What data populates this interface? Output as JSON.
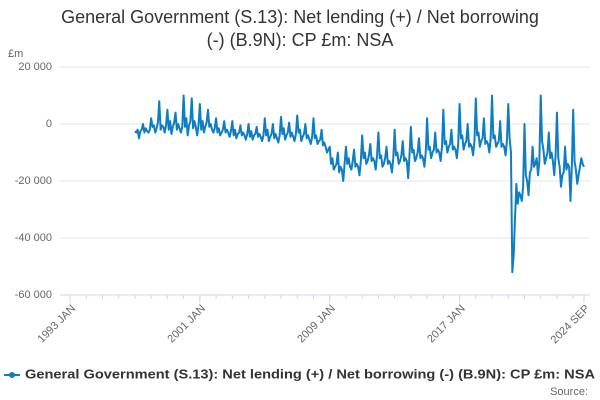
{
  "chart_data": {
    "type": "line",
    "title": "General Government (S.13): Net lending (+) / Net borrowing (-) (B.9N): CP £m: NSA",
    "y_label": "£m",
    "source": "Source:",
    "xlim": [
      "1993 JAN",
      "2024 SEP"
    ],
    "xticks": [
      "1993 JAN",
      "2001 JAN",
      "2009 JAN",
      "2017 JAN",
      "2024 SEP"
    ],
    "ylim": [
      -60000,
      20000
    ],
    "yticks": [
      {
        "value": -60000,
        "label": "-60 000"
      },
      {
        "value": -40000,
        "label": "-40 000"
      },
      {
        "value": -20000,
        "label": "-20 000"
      },
      0,
      {
        "value": 20000,
        "label": "20 000"
      }
    ],
    "grid": true,
    "x": [
      "1997 JAN",
      "1997 FEB",
      "1997 MAR",
      "1997 APR",
      "1997 MAY",
      "1997 JUN",
      "1997 JUL",
      "1997 AUG",
      "1997 SEP",
      "1997 OCT",
      "1997 NOV",
      "1997 DEC",
      "1998 JAN",
      "1998 FEB",
      "1998 MAR",
      "1998 APR",
      "1998 MAY",
      "1998 JUN",
      "1998 JUL",
      "1998 AUG",
      "1998 SEP",
      "1998 OCT",
      "1998 NOV",
      "1998 DEC",
      "1999 JAN",
      "1999 FEB",
      "1999 MAR",
      "1999 APR",
      "1999 MAY",
      "1999 JUN",
      "1999 JUL",
      "1999 AUG",
      "1999 SEP",
      "1999 OCT",
      "1999 NOV",
      "1999 DEC",
      "2000 JAN",
      "2000 FEB",
      "2000 MAR",
      "2000 APR",
      "2000 MAY",
      "2000 JUN",
      "2000 JUL",
      "2000 AUG",
      "2000 SEP",
      "2000 OCT",
      "2000 NOV",
      "2000 DEC",
      "2001 JAN",
      "2001 FEB",
      "2001 MAR",
      "2001 APR",
      "2001 MAY",
      "2001 JUN",
      "2001 JUL",
      "2001 AUG",
      "2001 SEP",
      "2001 OCT",
      "2001 NOV",
      "2001 DEC",
      "2002 JAN",
      "2002 FEB",
      "2002 MAR",
      "2002 APR",
      "2002 MAY",
      "2002 JUN",
      "2002 JUL",
      "2002 AUG",
      "2002 SEP",
      "2002 OCT",
      "2002 NOV",
      "2002 DEC",
      "2003 JAN",
      "2003 FEB",
      "2003 MAR",
      "2003 APR",
      "2003 MAY",
      "2003 JUN",
      "2003 JUL",
      "2003 AUG",
      "2003 SEP",
      "2003 OCT",
      "2003 NOV",
      "2003 DEC",
      "2004 JAN",
      "2004 FEB",
      "2004 MAR",
      "2004 APR",
      "2004 MAY",
      "2004 JUN",
      "2004 JUL",
      "2004 AUG",
      "2004 SEP",
      "2004 OCT",
      "2004 NOV",
      "2004 DEC",
      "2005 JAN",
      "2005 FEB",
      "2005 MAR",
      "2005 APR",
      "2005 MAY",
      "2005 JUN",
      "2005 JUL",
      "2005 AUG",
      "2005 SEP",
      "2005 OCT",
      "2005 NOV",
      "2005 DEC",
      "2006 JAN",
      "2006 FEB",
      "2006 MAR",
      "2006 APR",
      "2006 MAY",
      "2006 JUN",
      "2006 JUL",
      "2006 AUG",
      "2006 SEP",
      "2006 OCT",
      "2006 NOV",
      "2006 DEC",
      "2007 JAN",
      "2007 FEB",
      "2007 MAR",
      "2007 APR",
      "2007 MAY",
      "2007 JUN",
      "2007 JUL",
      "2007 AUG",
      "2007 SEP",
      "2007 OCT",
      "2007 NOV",
      "2007 DEC",
      "2008 JAN",
      "2008 FEB",
      "2008 MAR",
      "2008 APR",
      "2008 MAY",
      "2008 JUN",
      "2008 JUL",
      "2008 AUG",
      "2008 SEP",
      "2008 OCT",
      "2008 NOV",
      "2008 DEC",
      "2009 JAN",
      "2009 FEB",
      "2009 MAR",
      "2009 APR",
      "2009 MAY",
      "2009 JUN",
      "2009 JUL",
      "2009 AUG",
      "2009 SEP",
      "2009 OCT",
      "2009 NOV",
      "2009 DEC",
      "2010 JAN",
      "2010 FEB",
      "2010 MAR",
      "2010 APR",
      "2010 MAY",
      "2010 JUN",
      "2010 JUL",
      "2010 AUG",
      "2010 SEP",
      "2010 OCT",
      "2010 NOV",
      "2010 DEC",
      "2011 JAN",
      "2011 FEB",
      "2011 MAR",
      "2011 APR",
      "2011 MAY",
      "2011 JUN",
      "2011 JUL",
      "2011 AUG",
      "2011 SEP",
      "2011 OCT",
      "2011 NOV",
      "2011 DEC",
      "2012 JAN",
      "2012 FEB",
      "2012 MAR",
      "2012 APR",
      "2012 MAY",
      "2012 JUN",
      "2012 JUL",
      "2012 AUG",
      "2012 SEP",
      "2012 OCT",
      "2012 NOV",
      "2012 DEC",
      "2013 JAN",
      "2013 FEB",
      "2013 MAR",
      "2013 APR",
      "2013 MAY",
      "2013 JUN",
      "2013 JUL",
      "2013 AUG",
      "2013 SEP",
      "2013 OCT",
      "2013 NOV",
      "2013 DEC",
      "2014 JAN",
      "2014 FEB",
      "2014 MAR",
      "2014 APR",
      "2014 MAY",
      "2014 JUN",
      "2014 JUL",
      "2014 AUG",
      "2014 SEP",
      "2014 OCT",
      "2014 NOV",
      "2014 DEC",
      "2015 JAN",
      "2015 FEB",
      "2015 MAR",
      "2015 APR",
      "2015 MAY",
      "2015 JUN",
      "2015 JUL",
      "2015 AUG",
      "2015 SEP",
      "2015 OCT",
      "2015 NOV",
      "2015 DEC",
      "2016 JAN",
      "2016 FEB",
      "2016 MAR",
      "2016 APR",
      "2016 MAY",
      "2016 JUN",
      "2016 JUL",
      "2016 AUG",
      "2016 SEP",
      "2016 OCT",
      "2016 NOV",
      "2016 DEC",
      "2017 JAN",
      "2017 FEB",
      "2017 MAR",
      "2017 APR",
      "2017 MAY",
      "2017 JUN",
      "2017 JUL",
      "2017 AUG",
      "2017 SEP",
      "2017 OCT",
      "2017 NOV",
      "2017 DEC",
      "2018 JAN",
      "2018 FEB",
      "2018 MAR",
      "2018 APR",
      "2018 MAY",
      "2018 JUN",
      "2018 JUL",
      "2018 AUG",
      "2018 SEP",
      "2018 OCT",
      "2018 NOV",
      "2018 DEC",
      "2019 JAN",
      "2019 FEB",
      "2019 MAR",
      "2019 APR",
      "2019 MAY",
      "2019 JUN",
      "2019 JUL",
      "2019 AUG",
      "2019 SEP",
      "2019 OCT",
      "2019 NOV",
      "2019 DEC",
      "2020 JAN",
      "2020 FEB",
      "2020 MAR",
      "2020 APR",
      "2020 MAY",
      "2020 JUN",
      "2020 JUL",
      "2020 AUG",
      "2020 SEP",
      "2020 OCT",
      "2020 NOV",
      "2020 DEC",
      "2021 JAN",
      "2021 FEB",
      "2021 MAR",
      "2021 APR",
      "2021 MAY",
      "2021 JUN",
      "2021 JUL",
      "2021 AUG",
      "2021 SEP",
      "2021 OCT",
      "2021 NOV",
      "2021 DEC",
      "2022 JAN",
      "2022 FEB",
      "2022 MAR",
      "2022 APR",
      "2022 MAY",
      "2022 JUN",
      "2022 JUL",
      "2022 AUG",
      "2022 SEP",
      "2022 OCT",
      "2022 NOV",
      "2022 DEC",
      "2023 JAN",
      "2023 FEB",
      "2023 MAR",
      "2023 APR",
      "2023 MAY",
      "2023 JUN",
      "2023 JUL",
      "2023 AUG",
      "2023 SEP",
      "2023 OCT",
      "2023 NOV",
      "2023 DEC",
      "2024 JAN",
      "2024 FEB",
      "2024 MAR",
      "2024 APR",
      "2024 MAY",
      "2024 JUN",
      "2024 JUL",
      "2024 AUG",
      "2024 SEP"
    ],
    "series": [
      {
        "name": "General Government (S.13): Net lending (+) / Net borrowing (-) (B.9N): CP £m: NSA",
        "color": "#0e7dc2",
        "values": [
          -2500,
          -3000,
          -2000,
          -5000,
          -2500,
          -2000,
          0,
          -3000,
          -1500,
          -2500,
          -3000,
          -2000,
          2000,
          -1000,
          -500,
          -3000,
          -1500,
          500,
          8000,
          -2000,
          -500,
          -1000,
          -3000,
          -500,
          5000,
          -2000,
          1000,
          -3500,
          -1000,
          500,
          4000,
          -2000,
          0,
          -1500,
          -3000,
          -1000,
          10000,
          -1000,
          2000,
          -4000,
          -500,
          1000,
          9000,
          -1500,
          1000,
          -1000,
          -4000,
          -500,
          7000,
          -2000,
          1000,
          -3000,
          -1000,
          500,
          5000,
          -1000,
          0,
          -2000,
          -3000,
          -1500,
          2000,
          -3000,
          -1500,
          -4000,
          -3000,
          -2000,
          1000,
          -3000,
          -2000,
          -3000,
          -4500,
          -2500,
          1000,
          -4000,
          -2000,
          -5000,
          -3500,
          -3000,
          -500,
          -4000,
          -3000,
          -4000,
          -5500,
          -3500,
          0,
          -4500,
          -2500,
          -5500,
          -4000,
          -3500,
          -1000,
          -4500,
          -3500,
          -4500,
          -6000,
          -4000,
          2000,
          -4000,
          -2000,
          -6000,
          -4500,
          -3500,
          0,
          -5000,
          -3500,
          -5000,
          -6500,
          -4000,
          2500,
          -3500,
          -1500,
          -5500,
          -4000,
          -3000,
          500,
          -4500,
          -3000,
          -4500,
          -6000,
          -3500,
          3000,
          -3000,
          -2000,
          -6000,
          -4500,
          -3500,
          0,
          -5000,
          -4000,
          -5500,
          -7000,
          -4500,
          2000,
          -5000,
          -4000,
          -7000,
          -6000,
          -5500,
          -2000,
          -7500,
          -6500,
          -8000,
          -10000,
          -9000,
          -8000,
          -14000,
          -12000,
          -16000,
          -15000,
          -14000,
          -10000,
          -17000,
          -15000,
          -16000,
          -20000,
          -14000,
          -8000,
          -14000,
          -12000,
          -15000,
          -16000,
          -13000,
          -9000,
          -15000,
          -14000,
          -15000,
          -18000,
          -13000,
          -4000,
          -12000,
          -10000,
          -14000,
          -13000,
          -11000,
          -7000,
          -13000,
          -12000,
          -13000,
          -16000,
          -11000,
          -3000,
          -12000,
          -11000,
          -15000,
          -14000,
          -12000,
          -8000,
          -14000,
          -13000,
          -14000,
          -17000,
          -12000,
          -2000,
          -11000,
          -10000,
          -14000,
          -13000,
          -11000,
          -6000,
          -13000,
          -12000,
          -13000,
          -19000,
          -11000,
          -1000,
          -10000,
          -9000,
          -13000,
          -12000,
          -10000,
          -5000,
          -12000,
          -11000,
          -12000,
          -15000,
          -10000,
          2000,
          -9000,
          -8000,
          -12000,
          -10000,
          -9000,
          -3000,
          -10000,
          -9000,
          -10000,
          -13000,
          -8000,
          5000,
          -7000,
          -6000,
          -10000,
          -8000,
          -7000,
          -2000,
          -9000,
          -8000,
          -9000,
          -12000,
          -7000,
          7000,
          -5000,
          -4000,
          -9000,
          -7000,
          -6000,
          0,
          -8000,
          -7000,
          -8000,
          -11000,
          -6000,
          9000,
          -4000,
          -3000,
          -8000,
          -6000,
          -5000,
          2000,
          -7000,
          -6000,
          -7000,
          -10000,
          -5000,
          10000,
          -5000,
          -4000,
          -8000,
          -7000,
          -6000,
          1000,
          -8000,
          -7000,
          -8000,
          -11000,
          -6000,
          7000,
          -5000,
          -10000,
          -52000,
          -46000,
          -33000,
          -21000,
          -28000,
          -24000,
          -25000,
          -27000,
          -22000,
          0,
          -18000,
          -20000,
          -25000,
          -17000,
          -16000,
          -8000,
          -15000,
          -14000,
          -12000,
          -18000,
          -13000,
          10000,
          -6000,
          -9000,
          -14000,
          -12000,
          -10000,
          -3000,
          -12000,
          -10000,
          -13000,
          -18000,
          -11000,
          4000,
          -12000,
          -15000,
          -22000,
          -18000,
          -17000,
          -8000,
          -16000,
          -14000,
          -15000,
          -27000,
          -15000,
          5000,
          -13000,
          -16000,
          -21000,
          -18000,
          -15000,
          -12000,
          -14000,
          -15000
        ]
      }
    ]
  }
}
